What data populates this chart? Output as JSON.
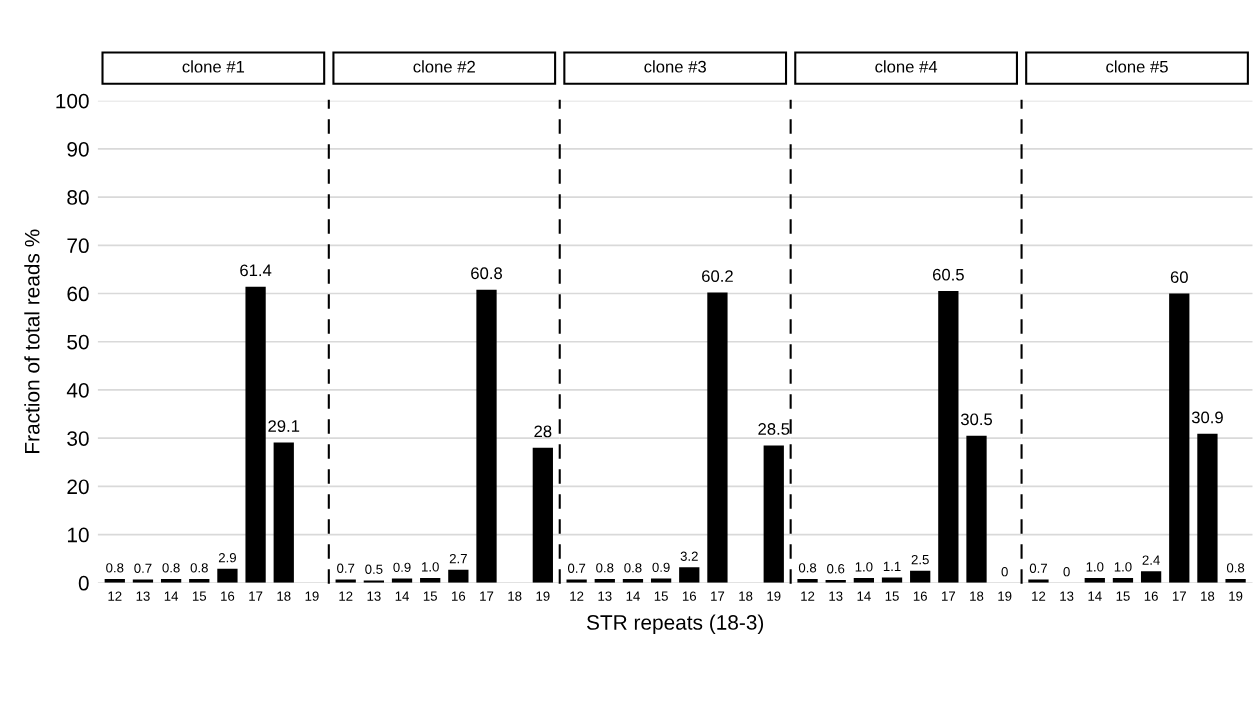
{
  "chart_data": [
    {
      "type": "bar",
      "title": "clone #1",
      "ylabel": "Fraction of total reads %",
      "categories": [
        "12",
        "13",
        "14",
        "15",
        "16",
        "17",
        "18",
        "19"
      ],
      "values": [
        0.8,
        0.7,
        0.8,
        0.8,
        2.9,
        61.4,
        29.1,
        null
      ],
      "value_labels": [
        "0.8",
        "0.7",
        "0.8",
        "0.8",
        "2.9",
        "61.4",
        "29.1",
        null
      ],
      "color": "#000000",
      "ylim": [
        0,
        100
      ],
      "yticks": [
        0,
        10,
        20,
        30,
        40,
        50,
        60,
        70,
        80,
        90,
        100
      ],
      "grid": "y"
    },
    {
      "type": "bar",
      "title": "clone #2",
      "categories": [
        "12",
        "13",
        "14",
        "15",
        "16",
        "17",
        "18",
        "19"
      ],
      "values": [
        0.7,
        0.5,
        0.9,
        1.0,
        2.7,
        60.8,
        null,
        28
      ],
      "value_labels": [
        "0.7",
        "0.5",
        "0.9",
        "1.0",
        "2.7",
        "60.8",
        null,
        "28"
      ],
      "color": "#000000",
      "ylim": [
        0,
        100
      ],
      "yticks": [
        0,
        10,
        20,
        30,
        40,
        50,
        60,
        70,
        80,
        90,
        100
      ],
      "grid": "y",
      "tick_labels": "x"
    },
    {
      "type": "bar",
      "title": "clone #3",
      "xlabel": "STR repeats (18-3)",
      "categories": [
        "12",
        "13",
        "14",
        "15",
        "16",
        "17",
        "18",
        "19"
      ],
      "values": [
        0.7,
        0.8,
        0.8,
        0.9,
        3.2,
        60.2,
        null,
        28.5
      ],
      "value_labels": [
        "0.7",
        "0.8",
        "0.8",
        "0.9",
        "3.2",
        "60.2",
        null,
        "28.5"
      ],
      "color": "#000000",
      "ylim": [
        0,
        100
      ],
      "yticks": [
        0,
        10,
        20,
        30,
        40,
        50,
        60,
        70,
        80,
        90,
        100
      ],
      "grid": "y",
      "tick_labels": "x"
    },
    {
      "type": "bar",
      "title": "clone #4",
      "categories": [
        "12",
        "13",
        "14",
        "15",
        "16",
        "17",
        "18",
        "19"
      ],
      "values": [
        0.8,
        0.6,
        1.0,
        1.1,
        2.5,
        60.5,
        30.5,
        0
      ],
      "value_labels": [
        "0.8",
        "0.6",
        "1.0",
        "1.1",
        "2.5",
        "60.5",
        "30.5",
        "0"
      ],
      "color": "#000000",
      "ylim": [
        0,
        100
      ],
      "yticks": [
        0,
        10,
        20,
        30,
        40,
        50,
        60,
        70,
        80,
        90,
        100
      ],
      "grid": "y",
      "tick_labels": "x"
    },
    {
      "type": "bar",
      "title": "clone #5",
      "categories": [
        "12",
        "13",
        "14",
        "15",
        "16",
        "17",
        "18",
        "19"
      ],
      "values": [
        0.7,
        0,
        1.0,
        1.0,
        2.4,
        60,
        30.9,
        0.8
      ],
      "value_labels": [
        "0.7",
        "0",
        "1.0",
        "1.0",
        "2.4",
        "60",
        "30.9",
        "0.8"
      ],
      "color": "#000000",
      "ylim": [
        0,
        100
      ],
      "yticks": [
        0,
        10,
        20,
        30,
        40,
        50,
        60,
        70,
        80,
        90,
        100
      ],
      "grid": "y",
      "tick_labels": "x"
    }
  ]
}
